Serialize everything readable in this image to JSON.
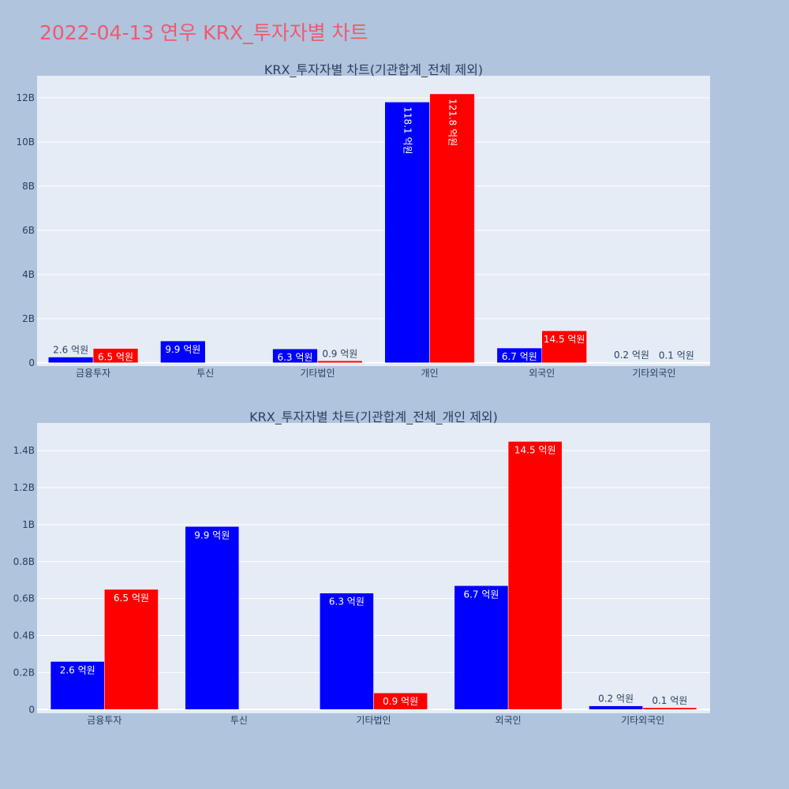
{
  "page": {
    "title": "2022-04-13 연우 KRX_투자자별 차트",
    "background": "#b0c4de",
    "plot_background": "#e5ecf6",
    "title_color": "#ef5a6f"
  },
  "series_colors": [
    "#0000ff",
    "#ff0000"
  ],
  "chart_data": [
    {
      "type": "bar",
      "title": "KRX_투자자별 차트(기관합계_전체 제외)",
      "categories": [
        "금융투자",
        "투신",
        "기타법인",
        "개인",
        "외국인",
        "기타외국인"
      ],
      "series": [
        {
          "values": [
            0.26,
            0.99,
            0.63,
            11.81,
            0.67,
            0.02
          ],
          "labels": [
            "2.6 억원",
            "9.9 억원",
            "6.3 억원",
            "118.1 억원",
            "6.7 억원",
            "0.2 억원"
          ]
        },
        {
          "values": [
            0.65,
            0,
            0.09,
            12.18,
            1.45,
            0.01
          ],
          "labels": [
            "6.5 억원",
            "",
            "0.9 억원",
            "121.8 억원",
            "14.5 억원",
            "0.1 억원"
          ]
        }
      ],
      "unit": "B",
      "ylim": [
        -0.15,
        13
      ],
      "yticks": [
        0,
        2,
        4,
        6,
        8,
        10,
        12
      ],
      "ytick_labels": [
        "0",
        "2B",
        "4B",
        "6B",
        "8B",
        "10B",
        "12B"
      ],
      "grid": true,
      "legend": "none"
    },
    {
      "type": "bar",
      "title": "KRX_투자자별 차트(기관합계_전체_개인 제외)",
      "categories": [
        "금융투자",
        "투신",
        "기타법인",
        "외국인",
        "기타외국인"
      ],
      "series": [
        {
          "values": [
            0.26,
            0.99,
            0.63,
            0.67,
            0.02
          ],
          "labels": [
            "2.6 억원",
            "9.9 억원",
            "6.3 억원",
            "6.7 억원",
            "0.2 억원"
          ]
        },
        {
          "values": [
            0.65,
            0,
            0.09,
            1.45,
            0.01
          ],
          "labels": [
            "6.5 억원",
            "",
            "0.9 억원",
            "14.5 억원",
            "0.1 억원"
          ]
        }
      ],
      "unit": "B",
      "ylim": [
        -0.02,
        1.55
      ],
      "yticks": [
        0,
        0.2,
        0.4,
        0.6,
        0.8,
        1.0,
        1.2,
        1.4
      ],
      "ytick_labels": [
        "0",
        "0.2B",
        "0.4B",
        "0.6B",
        "0.8B",
        "1B",
        "1.2B",
        "1.4B"
      ],
      "grid": true,
      "legend": "none"
    }
  ]
}
